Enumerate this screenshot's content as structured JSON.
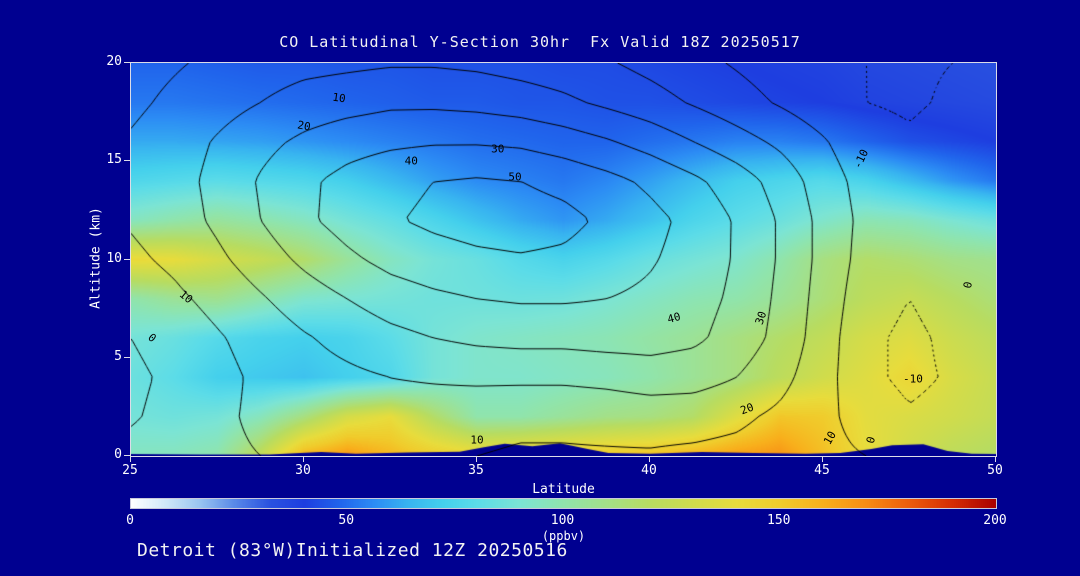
{
  "page": {
    "background": "#000090"
  },
  "chart": {
    "title": "CO Latitudinal Y-Section 30hr  Fx Valid 18Z 20250517",
    "footer": "Detroit (83°W)Initialized 12Z 20250516",
    "x_axis": {
      "label": "Latitude",
      "ticks": [
        25,
        30,
        35,
        40,
        45,
        50
      ],
      "range": [
        25,
        50
      ]
    },
    "y_axis": {
      "label": "Altitude (km)",
      "ticks": [
        0,
        5,
        10,
        15,
        20
      ],
      "range": [
        0,
        20
      ]
    },
    "colorbar": {
      "label": "(ppbv)",
      "ticks": [
        0,
        50,
        100,
        150,
        200
      ],
      "range": [
        0,
        200
      ]
    }
  },
  "chart_data": {
    "type": "heatmap",
    "title": "CO Latitudinal Y-Section 30hr Fx Valid 18Z 20250517",
    "xlabel": "Latitude",
    "ylabel": "Altitude (km)",
    "units": "ppbv",
    "value_range": [
      0,
      200
    ],
    "x": [
      25,
      26.25,
      27.5,
      28.75,
      30,
      31.25,
      32.5,
      33.75,
      35,
      36.25,
      37.5,
      38.75,
      40,
      41.25,
      42.5,
      43.75,
      45,
      46.25,
      47.5,
      48.75,
      50
    ],
    "y": [
      0,
      2,
      4,
      6,
      8,
      10,
      12,
      14,
      16,
      18,
      20
    ],
    "values_ppbv": [
      [
        95,
        96,
        100,
        125,
        160,
        168,
        158,
        150,
        145,
        148,
        150,
        152,
        155,
        160,
        166,
        168,
        155,
        140,
        130,
        122,
        118
      ],
      [
        88,
        86,
        88,
        96,
        112,
        132,
        140,
        118,
        100,
        100,
        105,
        110,
        112,
        118,
        136,
        152,
        150,
        138,
        134,
        130,
        125
      ],
      [
        85,
        80,
        72,
        70,
        68,
        72,
        76,
        88,
        92,
        92,
        94,
        96,
        100,
        106,
        112,
        122,
        130,
        136,
        144,
        133,
        126
      ],
      [
        88,
        84,
        78,
        74,
        72,
        74,
        80,
        88,
        92,
        94,
        96,
        98,
        102,
        106,
        112,
        118,
        124,
        132,
        136,
        128,
        122
      ],
      [
        100,
        106,
        108,
        100,
        92,
        90,
        88,
        86,
        86,
        85,
        86,
        90,
        94,
        98,
        100,
        106,
        114,
        122,
        126,
        120,
        114
      ],
      [
        142,
        140,
        132,
        126,
        118,
        105,
        95,
        88,
        84,
        78,
        74,
        78,
        84,
        88,
        92,
        100,
        112,
        118,
        115,
        110,
        108
      ],
      [
        95,
        100,
        104,
        100,
        95,
        88,
        82,
        75,
        68,
        62,
        58,
        62,
        68,
        75,
        80,
        85,
        92,
        98,
        96,
        90,
        85
      ],
      [
        76,
        78,
        80,
        78,
        76,
        72,
        66,
        60,
        56,
        54,
        52,
        55,
        60,
        66,
        72,
        75,
        78,
        74,
        66,
        58,
        52
      ],
      [
        62,
        62,
        61,
        60,
        58,
        56,
        54,
        52,
        50,
        49,
        48,
        48,
        50,
        52,
        54,
        54,
        52,
        48,
        44,
        42,
        40
      ],
      [
        52,
        52,
        51,
        50,
        49,
        48,
        47,
        46,
        46,
        45,
        45,
        44,
        44,
        43,
        42,
        41,
        40,
        38,
        37,
        36,
        35
      ],
      [
        48,
        48,
        47,
        46,
        46,
        45,
        45,
        44,
        44,
        44,
        43,
        43,
        42,
        41,
        40,
        39,
        38,
        36,
        35,
        34,
        33
      ]
    ],
    "colormap": [
      [
        0,
        "#ffffff"
      ],
      [
        8,
        "#d0e8f8"
      ],
      [
        16,
        "#98c4f0"
      ],
      [
        24,
        "#5888e8"
      ],
      [
        32,
        "#2a52e0"
      ],
      [
        40,
        "#1e3ee0"
      ],
      [
        48,
        "#2064ec"
      ],
      [
        56,
        "#2c8cf4"
      ],
      [
        64,
        "#38b4f0"
      ],
      [
        72,
        "#44d0ec"
      ],
      [
        80,
        "#5cdce8"
      ],
      [
        90,
        "#7ce4d4"
      ],
      [
        100,
        "#90e4ac"
      ],
      [
        110,
        "#a4e088"
      ],
      [
        120,
        "#b8dc60"
      ],
      [
        130,
        "#d0dc4c"
      ],
      [
        140,
        "#e8dc3c"
      ],
      [
        150,
        "#f0cc2c"
      ],
      [
        160,
        "#f8b01c"
      ],
      [
        170,
        "#f88c14"
      ],
      [
        180,
        "#ec5c0c"
      ],
      [
        190,
        "#d42c04"
      ],
      [
        200,
        "#a80000"
      ]
    ],
    "contour_overlay": {
      "levels": [
        -10,
        0,
        10,
        20,
        30,
        40,
        50
      ],
      "negative_style": "dotted",
      "x": [
        25,
        26.25,
        27.5,
        28.75,
        30,
        31.25,
        32.5,
        33.75,
        35,
        36.25,
        37.5,
        38.75,
        40,
        41.25,
        42.5,
        43.75,
        45,
        46.25,
        47.5,
        48.75,
        50
      ],
      "y": [
        0,
        2,
        4,
        6,
        8,
        10,
        12,
        14,
        16,
        18,
        20
      ],
      "values": [
        [
          3,
          5,
          8,
          10,
          12,
          12,
          12,
          11,
          10,
          9,
          9,
          9,
          9,
          8,
          7,
          5,
          3,
          0,
          -3,
          -3,
          -2
        ],
        [
          -1,
          3,
          8,
          12,
          14,
          15,
          16,
          15,
          13,
          12,
          12,
          13,
          14,
          14,
          12,
          8,
          3,
          -5,
          -9,
          -7,
          -4
        ],
        [
          -2,
          2,
          7,
          12,
          16,
          18,
          20,
          21,
          22,
          22,
          22,
          23,
          25,
          24,
          20,
          13,
          4,
          -8,
          -12,
          -9,
          -5
        ],
        [
          0,
          4,
          9,
          14,
          19,
          23,
          27,
          30,
          32,
          33,
          33,
          34,
          34,
          32,
          26,
          17,
          5,
          -8,
          -12,
          -8,
          -4
        ],
        [
          4,
          8,
          13,
          19,
          25,
          30,
          35,
          38,
          40,
          41,
          41,
          40,
          38,
          34,
          28,
          18,
          6,
          -6,
          -10,
          -6,
          -3
        ],
        [
          8,
          12,
          18,
          25,
          32,
          38,
          43,
          46,
          48,
          49,
          48,
          45,
          41,
          36,
          29,
          19,
          7,
          -4,
          -7,
          -4,
          -2
        ],
        [
          11,
          15,
          22,
          30,
          38,
          44,
          49,
          52,
          54,
          55,
          53,
          48,
          43,
          37,
          29,
          19,
          7,
          -3,
          -5,
          -3,
          -1
        ],
        [
          12,
          16,
          23,
          31,
          38,
          43,
          47,
          50,
          51,
          50,
          47,
          43,
          38,
          32,
          25,
          16,
          5,
          -4,
          -6,
          -4,
          -2
        ],
        [
          11,
          15,
          21,
          27,
          32,
          36,
          38,
          39,
          39,
          38,
          35,
          31,
          26,
          20,
          14,
          8,
          1,
          -7,
          -9,
          -7,
          -5
        ],
        [
          8,
          12,
          16,
          20,
          24,
          26,
          28,
          28,
          27,
          25,
          22,
          18,
          14,
          9,
          4,
          -1,
          -6,
          -10,
          -11,
          -9,
          -7
        ],
        [
          6,
          9,
          12,
          15,
          17,
          18,
          19,
          19,
          18,
          16,
          14,
          11,
          7,
          3,
          -1,
          -5,
          -8,
          -10,
          -11,
          -10,
          -9
        ]
      ],
      "labels": [
        {
          "text": "10",
          "lat": 31.0,
          "alt": 18.2,
          "rot": 8
        },
        {
          "text": "20",
          "lat": 30.0,
          "alt": 16.8,
          "rot": 10
        },
        {
          "text": "30",
          "lat": 35.6,
          "alt": 15.6,
          "rot": 0
        },
        {
          "text": "40",
          "lat": 33.1,
          "alt": 15.0,
          "rot": 0
        },
        {
          "text": "50",
          "lat": 36.1,
          "alt": 14.2,
          "rot": 0
        },
        {
          "text": "-10",
          "lat": 46.1,
          "alt": 15.1,
          "rot": -65
        },
        {
          "text": "10",
          "lat": 26.6,
          "alt": 8.1,
          "rot": 40
        },
        {
          "text": "0",
          "lat": 25.6,
          "alt": 6.0,
          "rot": 40
        },
        {
          "text": "40",
          "lat": 40.7,
          "alt": 7.0,
          "rot": -15
        },
        {
          "text": "30",
          "lat": 43.2,
          "alt": 7.0,
          "rot": -72
        },
        {
          "text": "20",
          "lat": 42.8,
          "alt": 2.4,
          "rot": -20
        },
        {
          "text": "10",
          "lat": 45.2,
          "alt": 0.9,
          "rot": -60
        },
        {
          "text": "0",
          "lat": 46.4,
          "alt": 0.8,
          "rot": -75
        },
        {
          "text": "-10",
          "lat": 47.6,
          "alt": 3.9,
          "rot": 0
        },
        {
          "text": "10",
          "lat": 35.0,
          "alt": 0.8,
          "rot": 0
        },
        {
          "text": "0",
          "lat": 49.2,
          "alt": 8.7,
          "rot": -80
        }
      ]
    },
    "terrain_profile": [
      [
        25,
        0.1
      ],
      [
        27,
        0.08
      ],
      [
        29,
        0.08
      ],
      [
        30.5,
        0.2
      ],
      [
        31.5,
        0.12
      ],
      [
        33,
        0.18
      ],
      [
        34.5,
        0.22
      ],
      [
        35.2,
        0.45
      ],
      [
        35.8,
        0.62
      ],
      [
        36.6,
        0.5
      ],
      [
        37.4,
        0.65
      ],
      [
        38.2,
        0.35
      ],
      [
        38.8,
        0.15
      ],
      [
        40,
        0.12
      ],
      [
        41.5,
        0.2
      ],
      [
        43,
        0.15
      ],
      [
        44.5,
        0.12
      ],
      [
        45.5,
        0.15
      ],
      [
        46.4,
        0.35
      ],
      [
        47,
        0.55
      ],
      [
        47.9,
        0.6
      ],
      [
        48.6,
        0.25
      ],
      [
        49.3,
        0.12
      ],
      [
        50,
        0.1
      ]
    ]
  }
}
